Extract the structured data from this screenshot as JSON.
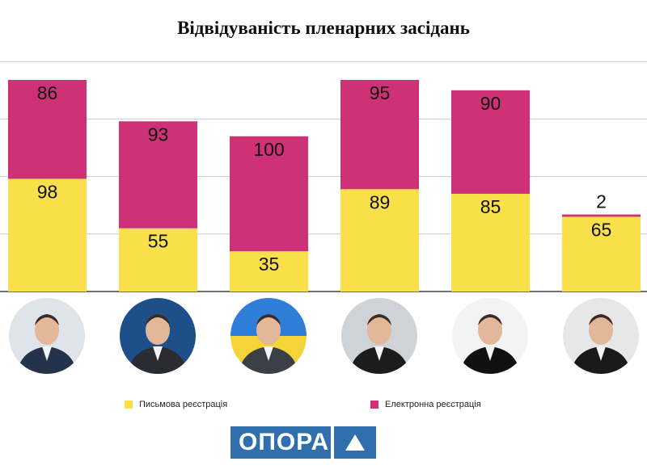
{
  "title": "Відвідуваність пленарних засідань",
  "colors": {
    "written": "#f9e04b",
    "electronic": "#cf3176",
    "grid": "#cccccc",
    "logo": "#2f6fad"
  },
  "legend": {
    "written": "Письмова реєстрація",
    "electronic": "Електронна реєстрація"
  },
  "logo": {
    "text": "ОПОРА"
  },
  "avatars": [
    "person-1",
    "person-2",
    "person-3",
    "person-4",
    "person-5",
    "person-6"
  ],
  "chart_data": {
    "type": "bar",
    "stacked": true,
    "categories": [
      "",
      "",
      "",
      "",
      "",
      ""
    ],
    "series": [
      {
        "name": "Письмова реєстрація",
        "values": [
          98,
          55,
          35,
          89,
          85,
          65
        ]
      },
      {
        "name": "Електронна реєстрація",
        "values": [
          86,
          93,
          100,
          95,
          90,
          2
        ]
      }
    ],
    "ylim": [
      0,
      200
    ],
    "grid": true,
    "legend_position": "bottom"
  }
}
